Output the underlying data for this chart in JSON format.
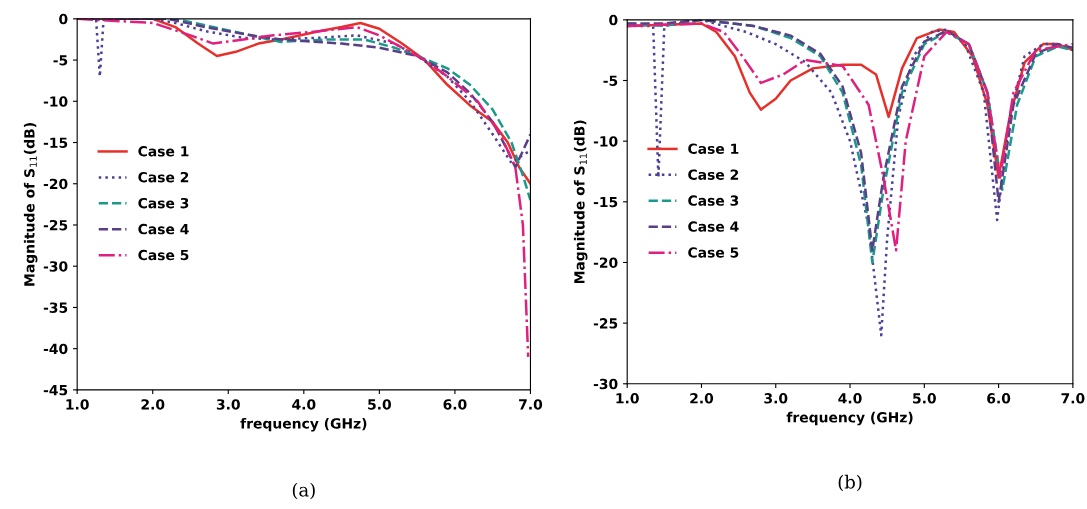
{
  "chart_data": [
    {
      "type": "line",
      "xlabel": "frequency (GHz)",
      "ylabel": "Magnitude of S$_{11}$(dB)",
      "annotations": [
        "(a)"
      ],
      "xlim": [
        1,
        7
      ],
      "ylim": [
        -45,
        0
      ],
      "xticks": [
        {
          "value": 1,
          "label": "1.0"
        },
        {
          "value": 2,
          "label": "2.0"
        },
        {
          "value": 3,
          "label": "3.0"
        },
        {
          "value": 4,
          "label": "4.0"
        },
        {
          "value": 5,
          "label": "5.0"
        },
        {
          "value": 6,
          "label": "6.0"
        },
        {
          "value": 7,
          "label": "7.0"
        }
      ],
      "yticks": [
        0,
        -5,
        -10,
        -15,
        -20,
        -25,
        -30,
        -35,
        -40,
        -45
      ],
      "grid": false,
      "legend": "left",
      "series": [
        {
          "name": "Case 1",
          "color": "#e8302a",
          "line_style": "solid",
          "x": [
            1.0,
            2.0,
            2.3,
            2.6,
            2.85,
            3.1,
            3.4,
            3.7,
            4.2,
            4.5,
            4.75,
            5.0,
            5.3,
            5.6,
            5.9,
            6.2,
            6.5,
            6.7,
            6.85,
            7.0
          ],
          "values": [
            0,
            0,
            -1,
            -3,
            -4.5,
            -4,
            -3,
            -2.5,
            -1.5,
            -1,
            -0.5,
            -1.2,
            -3,
            -5,
            -8,
            -10.5,
            -12.5,
            -15,
            -18,
            -20
          ]
        },
        {
          "name": "Case 2",
          "color": "#4b3f9a",
          "line_style": "dotted",
          "x": [
            1.0,
            1.25,
            1.3,
            1.35,
            2.0,
            2.3,
            2.7,
            3.2,
            3.6,
            4.2,
            4.7,
            5.2,
            5.5,
            5.9,
            6.2,
            6.5,
            6.75,
            6.9,
            7.0
          ],
          "values": [
            0,
            0,
            -7,
            0,
            0,
            -0.5,
            -1.5,
            -2.3,
            -2.5,
            -2.3,
            -2,
            -3,
            -4.5,
            -7,
            -10,
            -14,
            -17.5,
            -16.5,
            -16
          ]
        },
        {
          "name": "Case 3",
          "color": "#1a9a8a",
          "line_style": "dashed",
          "x": [
            1.0,
            2.3,
            2.8,
            3.3,
            3.7,
            4.3,
            4.8,
            5.2,
            5.5,
            5.9,
            6.2,
            6.5,
            6.75,
            6.9,
            7.0
          ],
          "values": [
            0,
            0,
            -1,
            -2,
            -2.8,
            -2.5,
            -2.5,
            -3.5,
            -4.5,
            -6,
            -8,
            -11,
            -15,
            -19,
            -22
          ]
        },
        {
          "name": "Case 4",
          "color": "#5a3e86",
          "line_style": "dashed",
          "x": [
            1.0,
            2.2,
            2.7,
            3.3,
            3.7,
            4.5,
            5.0,
            5.5,
            5.9,
            6.2,
            6.5,
            6.7,
            6.8,
            6.9,
            7.0
          ],
          "values": [
            0,
            0,
            -1,
            -2,
            -2.5,
            -3,
            -3.5,
            -4.5,
            -6.5,
            -9,
            -12.5,
            -16,
            -18,
            -16,
            -14
          ]
        },
        {
          "name": "Case 5",
          "color": "#e0207f",
          "line_style": "dashdot",
          "x": [
            1.0,
            2.0,
            2.5,
            2.8,
            3.2,
            3.6,
            4.2,
            4.7,
            5.0,
            5.3,
            5.6,
            5.9,
            6.3,
            6.6,
            6.8,
            6.9,
            6.97
          ],
          "values": [
            0,
            -0.5,
            -2,
            -3,
            -2.5,
            -2,
            -1.5,
            -1,
            -2,
            -3.5,
            -5,
            -7,
            -10,
            -14,
            -18,
            -25,
            -41
          ]
        }
      ]
    },
    {
      "type": "line",
      "xlabel": "frequency (GHz)",
      "ylabel": "Magnitude of S$_{11}$(dB)",
      "annotations": [
        "(b)"
      ],
      "xlim": [
        1,
        7
      ],
      "ylim": [
        -30,
        0
      ],
      "xticks": [
        {
          "value": 1,
          "label": "1.0"
        },
        {
          "value": 2,
          "label": "2.0"
        },
        {
          "value": 3,
          "label": "3.0"
        },
        {
          "value": 4,
          "label": "4.0"
        },
        {
          "value": 5,
          "label": "5.0"
        },
        {
          "value": 6,
          "label": "6.0"
        },
        {
          "value": 7,
          "label": "7.0"
        }
      ],
      "yticks": [
        0,
        -5,
        -10,
        -15,
        -20,
        -25,
        -30
      ],
      "grid": false,
      "legend": "left",
      "series": [
        {
          "name": "Case 1",
          "color": "#e8302a",
          "line_style": "solid",
          "x": [
            1.0,
            2.0,
            2.2,
            2.45,
            2.65,
            2.8,
            3.0,
            3.2,
            3.5,
            3.9,
            4.15,
            4.35,
            4.52,
            4.7,
            4.9,
            5.2,
            5.4,
            5.65,
            5.85,
            6.0,
            6.15,
            6.35,
            6.6,
            6.8,
            7.0
          ],
          "values": [
            -0.5,
            -0.3,
            -1,
            -3,
            -6,
            -7.4,
            -6.5,
            -5,
            -4,
            -3.7,
            -3.7,
            -4.5,
            -8,
            -4,
            -1.5,
            -0.8,
            -1,
            -3,
            -7,
            -13,
            -8,
            -3.5,
            -2,
            -2,
            -2.5
          ]
        },
        {
          "name": "Case 2",
          "color": "#4b3f9a",
          "line_style": "dotted",
          "x": [
            1.0,
            1.35,
            1.42,
            1.5,
            2.0,
            2.6,
            3.0,
            3.4,
            3.75,
            4.0,
            4.25,
            4.42,
            4.5,
            4.65,
            4.85,
            5.1,
            5.3,
            5.55,
            5.8,
            5.98,
            6.15,
            6.35,
            6.6,
            6.8,
            7.0
          ],
          "values": [
            -0.5,
            -0.5,
            -13,
            -0.5,
            0,
            -1,
            -2,
            -3.5,
            -6,
            -10,
            -17,
            -26,
            -18,
            -8,
            -3,
            -1,
            -0.8,
            -2,
            -6,
            -16.5,
            -8,
            -3,
            -2,
            -2,
            -2.5
          ]
        },
        {
          "name": "Case 3",
          "color": "#1a9a8a",
          "line_style": "dashed",
          "x": [
            1.0,
            1.5,
            2.0,
            2.7,
            3.2,
            3.6,
            3.9,
            4.15,
            4.3,
            4.45,
            4.7,
            5.0,
            5.3,
            5.6,
            5.85,
            6.05,
            6.25,
            6.5,
            6.8,
            7.0
          ],
          "values": [
            -0.3,
            -0.5,
            0,
            -0.5,
            -1.5,
            -3,
            -6,
            -12,
            -20,
            -14,
            -6,
            -2,
            -1,
            -2,
            -6,
            -14,
            -7,
            -3,
            -2.2,
            -2.5
          ]
        },
        {
          "name": "Case 4",
          "color": "#5a3e86",
          "line_style": "dashed",
          "x": [
            1.0,
            1.5,
            2.0,
            2.7,
            3.2,
            3.6,
            3.9,
            4.15,
            4.3,
            4.45,
            4.7,
            5.0,
            5.3,
            5.6,
            5.85,
            6.0,
            6.2,
            6.5,
            6.8,
            7.0
          ],
          "values": [
            -0.3,
            -0.3,
            0,
            -0.5,
            -1.3,
            -2.8,
            -5.5,
            -11,
            -19,
            -13,
            -5.5,
            -1.8,
            -0.9,
            -2,
            -6,
            -15,
            -7,
            -2.8,
            -2,
            -2.3
          ]
        },
        {
          "name": "Case 5",
          "color": "#e0207f",
          "line_style": "dashdot",
          "x": [
            1.0,
            2.0,
            2.3,
            2.55,
            2.8,
            3.1,
            3.4,
            3.9,
            4.25,
            4.45,
            4.62,
            4.75,
            5.0,
            5.3,
            5.6,
            5.85,
            6.02,
            6.2,
            6.5,
            7.0
          ],
          "values": [
            -0.5,
            -0.3,
            -1,
            -3,
            -5.2,
            -4.5,
            -3.3,
            -3.8,
            -7,
            -13,
            -19,
            -10,
            -3,
            -1,
            -2,
            -6,
            -13,
            -6,
            -2.5,
            -2
          ]
        }
      ]
    }
  ]
}
